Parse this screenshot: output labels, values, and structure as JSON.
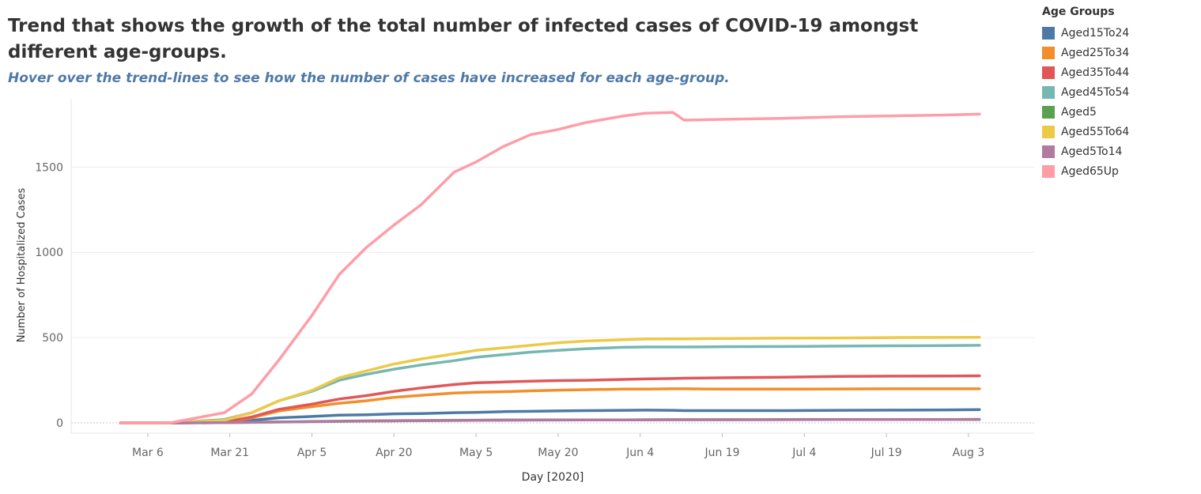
{
  "header": {
    "title": "Trend that shows the growth of the total number of infected cases of COVID-19 amongst different age-groups.",
    "subtitle": "Hover over the trend-lines to see how the number of cases have increased for each age-group."
  },
  "legend": {
    "title": "Age Groups"
  },
  "chart_data": {
    "type": "line",
    "xlabel": "Day [2020]",
    "ylabel": "Number of Hospitalized Cases",
    "x_ticks": [
      "Mar 6",
      "Mar 21",
      "Apr 5",
      "Apr 20",
      "May 5",
      "May 20",
      "Jun 4",
      "Jun 19",
      "Jul 4",
      "Jul 19",
      "Aug 3"
    ],
    "y_ticks": [
      "0",
      "500",
      "1000",
      "1500"
    ],
    "ylim": [
      -60,
      1900
    ],
    "xlim": [
      "2020-02-21",
      "2020-08-15"
    ],
    "grid": true,
    "legend_position": "right",
    "x": [
      "2020-03-01",
      "2020-03-10",
      "2020-03-20",
      "2020-03-25",
      "2020-03-30",
      "2020-04-05",
      "2020-04-10",
      "2020-04-15",
      "2020-04-20",
      "2020-04-25",
      "2020-05-01",
      "2020-05-05",
      "2020-05-10",
      "2020-05-15",
      "2020-05-20",
      "2020-05-25",
      "2020-06-01",
      "2020-06-05",
      "2020-06-10",
      "2020-06-12",
      "2020-06-20",
      "2020-06-30",
      "2020-07-10",
      "2020-07-20",
      "2020-07-30",
      "2020-08-05"
    ],
    "series": [
      {
        "name": "Aged15To24",
        "color": "#4e79a7",
        "values": [
          0,
          0,
          2,
          15,
          30,
          38,
          45,
          48,
          53,
          55,
          60,
          62,
          66,
          68,
          70,
          72,
          74,
          75,
          74,
          72,
          72,
          72,
          74,
          75,
          76,
          78
        ]
      },
      {
        "name": "Aged25To34",
        "color": "#f28e2b",
        "values": [
          0,
          0,
          5,
          30,
          70,
          95,
          115,
          130,
          150,
          162,
          175,
          180,
          183,
          188,
          192,
          195,
          198,
          198,
          200,
          200,
          198,
          198,
          199,
          200,
          200,
          200
        ]
      },
      {
        "name": "Aged35To44",
        "color": "#e15759",
        "values": [
          0,
          0,
          5,
          35,
          80,
          110,
          140,
          160,
          185,
          205,
          225,
          235,
          240,
          245,
          248,
          250,
          255,
          258,
          260,
          262,
          265,
          268,
          272,
          274,
          275,
          276
        ]
      },
      {
        "name": "Aged45To54",
        "color": "#76b7b2",
        "values": [
          0,
          0,
          20,
          60,
          130,
          185,
          250,
          285,
          315,
          340,
          365,
          385,
          400,
          415,
          425,
          435,
          443,
          445,
          445,
          445,
          447,
          448,
          450,
          452,
          453,
          455
        ]
      },
      {
        "name": "Aged5",
        "color": "#59a14f",
        "values": [
          0,
          0,
          2,
          4,
          6,
          8,
          10,
          12,
          13,
          14,
          15,
          16,
          17,
          17,
          18,
          18,
          18,
          19,
          19,
          19,
          19,
          20,
          20,
          20,
          20,
          20
        ]
      },
      {
        "name": "Aged55To64",
        "color": "#edc948",
        "values": [
          0,
          0,
          15,
          60,
          130,
          190,
          265,
          305,
          345,
          375,
          405,
          425,
          440,
          455,
          470,
          480,
          488,
          492,
          493,
          493,
          495,
          497,
          498,
          500,
          501,
          502
        ]
      },
      {
        "name": "Aged5To14",
        "color": "#b07aa1",
        "values": [
          0,
          0,
          1,
          3,
          5,
          7,
          9,
          11,
          12,
          13,
          14,
          15,
          16,
          17,
          17,
          18,
          18,
          18,
          19,
          19,
          19,
          19,
          20,
          20,
          20,
          21
        ]
      },
      {
        "name": "Aged65Up",
        "color": "#ff9da7",
        "values": [
          0,
          0,
          60,
          170,
          370,
          630,
          870,
          1030,
          1160,
          1280,
          1470,
          1530,
          1620,
          1690,
          1720,
          1760,
          1800,
          1815,
          1820,
          1775,
          1780,
          1785,
          1795,
          1800,
          1805,
          1810
        ]
      }
    ]
  }
}
